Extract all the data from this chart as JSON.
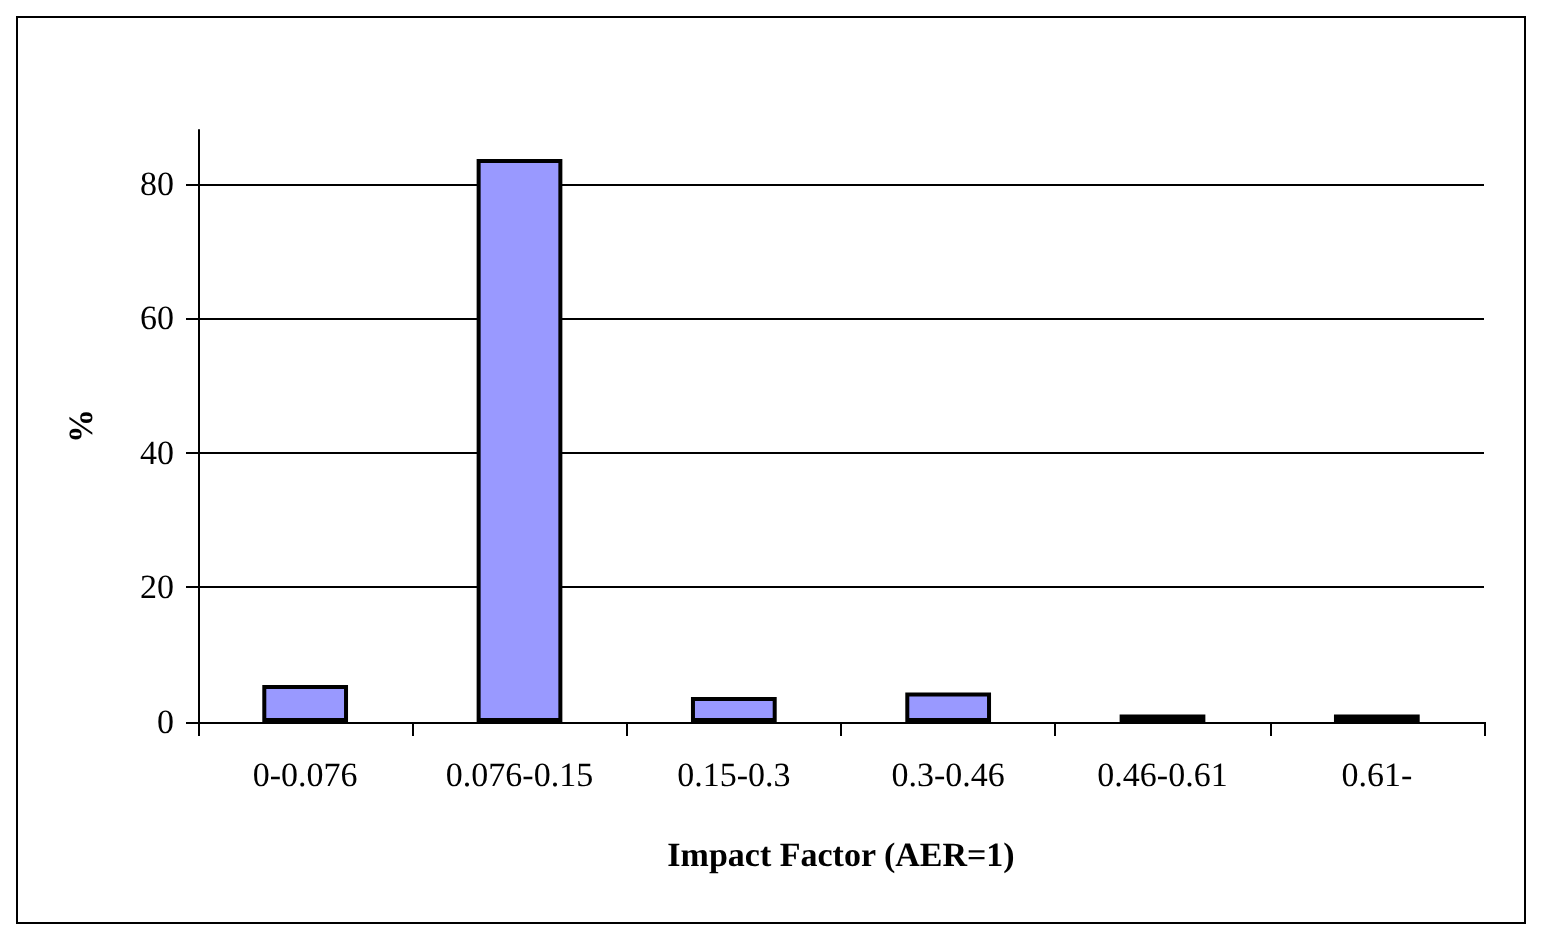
{
  "chart_data": {
    "type": "bar",
    "xlabel": "Impact Factor (AER=1)",
    "ylabel": "%",
    "categories": [
      "0-0.076",
      "0.076-0.15",
      "0.15-0.3",
      "0.3-0.46",
      "0.46-0.61",
      "0.61-"
    ],
    "values": [
      5.5,
      83.7,
      3.7,
      4.4,
      1.1,
      1.1
    ],
    "color": "#9999ff",
    "ylim": [
      0,
      88
    ],
    "yticks": [
      0,
      20,
      40,
      60,
      80
    ],
    "grid": "y"
  }
}
